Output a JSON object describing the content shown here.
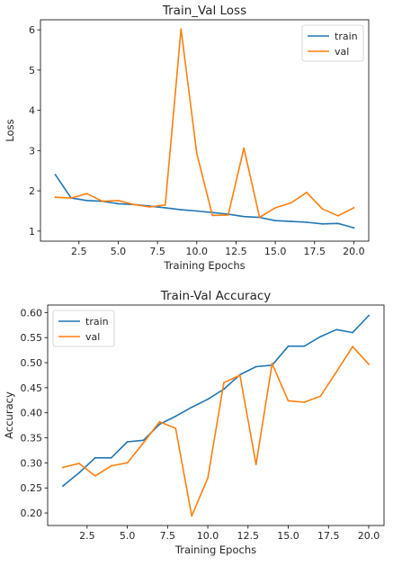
{
  "chart_data": [
    {
      "type": "line",
      "title": "Train_Val Loss",
      "xlabel": "Training Epochs",
      "ylabel": "Loss",
      "xlim": [
        0.05,
        20.95
      ],
      "ylim": [
        0.75,
        6.25
      ],
      "xticks": [
        2.5,
        5.0,
        7.5,
        10.0,
        12.5,
        15.0,
        17.5,
        20.0
      ],
      "xtick_labels": [
        "2.5",
        "5.0",
        "7.5",
        "10.0",
        "12.5",
        "15.0",
        "17.5",
        "20.0"
      ],
      "yticks": [
        1,
        2,
        3,
        4,
        5,
        6
      ],
      "ytick_labels": [
        "1",
        "2",
        "3",
        "4",
        "5",
        "6"
      ],
      "grid": false,
      "legend_position": "upper right",
      "x": [
        1,
        2,
        3,
        4,
        5,
        6,
        7,
        8,
        9,
        10,
        11,
        12,
        13,
        14,
        15,
        16,
        17,
        18,
        19,
        20
      ],
      "series": [
        {
          "name": "train",
          "color": "#1f77b4",
          "values": [
            2.4,
            1.82,
            1.76,
            1.74,
            1.68,
            1.66,
            1.62,
            1.58,
            1.53,
            1.5,
            1.46,
            1.42,
            1.36,
            1.34,
            1.26,
            1.24,
            1.22,
            1.18,
            1.19,
            1.08
          ]
        },
        {
          "name": "val",
          "color": "#ff7f0e",
          "values": [
            1.84,
            1.82,
            1.93,
            1.74,
            1.76,
            1.66,
            1.6,
            1.65,
            6.02,
            2.93,
            1.39,
            1.4,
            3.06,
            1.34,
            1.58,
            1.7,
            1.96,
            1.55,
            1.38,
            1.58
          ]
        }
      ]
    },
    {
      "type": "line",
      "title": "Train-Val Accuracy",
      "xlabel": "Training Epochs",
      "ylabel": "Accuracy",
      "xlim": [
        0.05,
        20.95
      ],
      "ylim": [
        0.175,
        0.615
      ],
      "xticks": [
        2.5,
        5.0,
        7.5,
        10.0,
        12.5,
        15.0,
        17.5,
        20.0
      ],
      "xtick_labels": [
        "2.5",
        "5.0",
        "7.5",
        "10.0",
        "12.5",
        "15.0",
        "17.5",
        "20.0"
      ],
      "yticks": [
        0.2,
        0.25,
        0.3,
        0.35,
        0.4,
        0.45,
        0.5,
        0.55,
        0.6
      ],
      "ytick_labels": [
        "0.20",
        "0.25",
        "0.30",
        "0.35",
        "0.40",
        "0.45",
        "0.50",
        "0.55",
        "0.60"
      ],
      "grid": false,
      "legend_position": "upper left",
      "x": [
        1,
        2,
        3,
        4,
        5,
        6,
        7,
        8,
        9,
        10,
        11,
        12,
        13,
        14,
        15,
        16,
        17,
        18,
        19,
        20
      ],
      "series": [
        {
          "name": "train",
          "color": "#1f77b4",
          "values": [
            0.254,
            0.28,
            0.31,
            0.31,
            0.342,
            0.345,
            0.377,
            0.393,
            0.411,
            0.427,
            0.447,
            0.476,
            0.492,
            0.495,
            0.533,
            0.533,
            0.552,
            0.566,
            0.56,
            0.594
          ]
        },
        {
          "name": "val",
          "color": "#ff7f0e",
          "values": [
            0.291,
            0.299,
            0.274,
            0.294,
            0.3,
            0.34,
            0.382,
            0.369,
            0.194,
            0.27,
            0.46,
            0.475,
            0.297,
            0.498,
            0.424,
            0.421,
            0.433,
            0.482,
            0.532,
            0.497
          ]
        }
      ]
    }
  ]
}
